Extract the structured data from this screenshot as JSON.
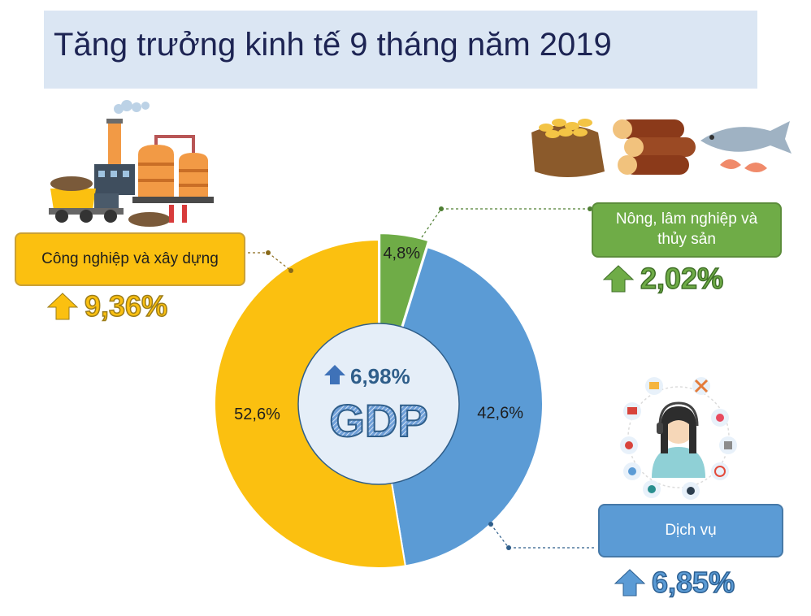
{
  "title": "Tăng trưởng kinh tế 9 tháng năm 2019",
  "center": {
    "growth": "6,98%",
    "label": "GDP"
  },
  "sectors": {
    "industry": {
      "label": "Công nghiệp và xây dựng",
      "growth": "9,36%",
      "color": "#fbc010",
      "icon": "factory-icon"
    },
    "agriculture": {
      "label": "Nông, lâm nghiệp và thủy sản",
      "growth": "2,02%",
      "color": "#6fac47",
      "icon": "farm-products-icon"
    },
    "services": {
      "label": "Dịch vụ",
      "growth": "6,85%",
      "color": "#5b9bd5",
      "icon": "call-center-icon"
    }
  },
  "chart_data": {
    "type": "pie",
    "categories": [
      "Nông, lâm nghiệp và thủy sản",
      "Dịch vụ",
      "Công nghiệp và xây dựng"
    ],
    "values": [
      4.8,
      42.6,
      52.6
    ],
    "value_labels": [
      "4,8%",
      "42,6%",
      "52,6%"
    ],
    "colors": [
      "#6fac47",
      "#5b9bd5",
      "#fbc010"
    ],
    "donut": true,
    "center_label": "GDP"
  }
}
